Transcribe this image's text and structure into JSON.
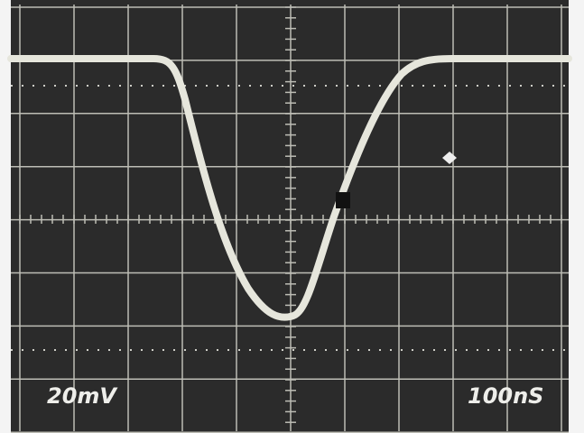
{
  "screen": {
    "volts_per_div": "20mV",
    "time_per_div": "100nS"
  }
}
